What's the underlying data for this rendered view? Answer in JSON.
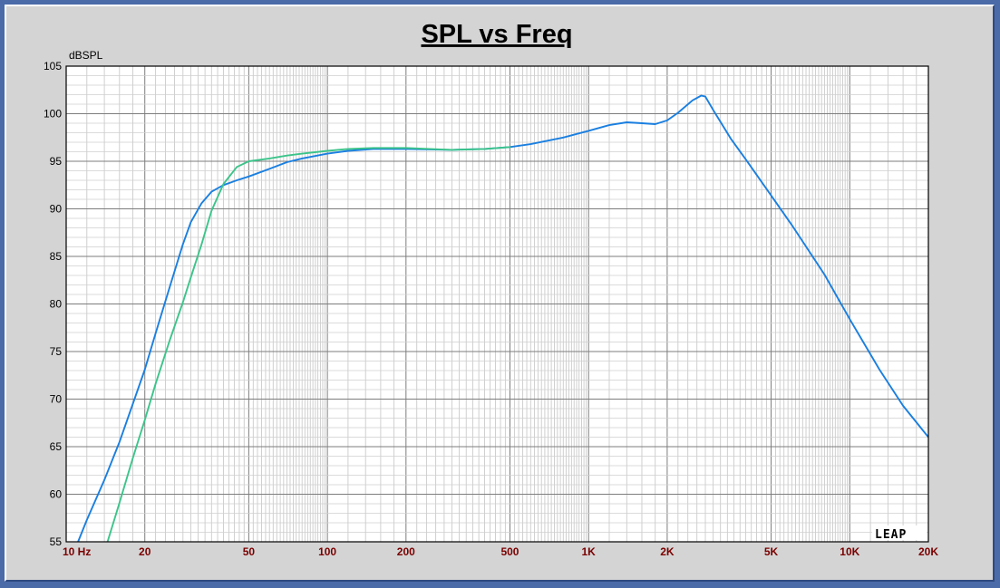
{
  "chart_data": {
    "type": "line",
    "title": "SPL vs Freq",
    "ylabel": "dBSPL",
    "xlabel": "",
    "xscale": "log",
    "xlim": [
      10,
      20000
    ],
    "ylim": [
      55,
      105
    ],
    "grid": true,
    "xtick_values": [
      10,
      20,
      50,
      100,
      200,
      500,
      1000,
      2000,
      5000,
      10000,
      20000
    ],
    "xtick_labels": [
      "10  Hz",
      "20",
      "50",
      "100",
      "200",
      "500",
      "1K",
      "2K",
      "5K",
      "10K",
      "20K"
    ],
    "ytick_values": [
      55,
      60,
      65,
      70,
      75,
      80,
      85,
      90,
      95,
      100,
      105
    ],
    "ytick_labels": [
      "55",
      "60",
      "65",
      "70",
      "75",
      "80",
      "85",
      "90",
      "95",
      "100",
      "105"
    ],
    "watermark": "LEAP",
    "series": [
      {
        "color": "#1a7fe0",
        "x": [
          11.1,
          12,
          14,
          16,
          18,
          20,
          22,
          25,
          28,
          30,
          33,
          36,
          40,
          45,
          50,
          60,
          70,
          80,
          100,
          120,
          150,
          200,
          300,
          400,
          500,
          600,
          800,
          1000,
          1200,
          1400,
          1600,
          1800,
          2000,
          2200,
          2500,
          2700,
          2800,
          3000,
          3500,
          4000,
          5000,
          6000,
          8000,
          10000,
          13000,
          16000,
          20000
        ],
        "y": [
          55,
          57.3,
          61.5,
          65.5,
          69.5,
          73.1,
          76.9,
          81.9,
          86.3,
          88.6,
          90.6,
          91.8,
          92.5,
          93.0,
          93.4,
          94.2,
          94.9,
          95.3,
          95.8,
          96.1,
          96.3,
          96.3,
          96.2,
          96.3,
          96.5,
          96.8,
          97.5,
          98.2,
          98.8,
          99.1,
          99.0,
          98.9,
          99.3,
          100.1,
          101.4,
          101.9,
          101.8,
          100.4,
          97.4,
          95.2,
          91.4,
          88.3,
          83.1,
          78.4,
          73.1,
          69.3,
          66.0
        ]
      },
      {
        "color": "#3cc48a",
        "x": [
          14.4,
          16,
          18,
          20,
          22,
          25,
          28,
          30,
          33,
          36,
          40,
          45,
          50,
          60,
          70,
          80,
          100,
          120,
          150,
          200,
          300,
          400,
          500
        ],
        "y": [
          55,
          59.1,
          63.8,
          67.8,
          71.6,
          76.3,
          80.2,
          82.8,
          86.3,
          89.8,
          92.6,
          94.4,
          95.0,
          95.3,
          95.6,
          95.8,
          96.1,
          96.3,
          96.4,
          96.4,
          96.2,
          96.3,
          96.5
        ]
      }
    ]
  }
}
